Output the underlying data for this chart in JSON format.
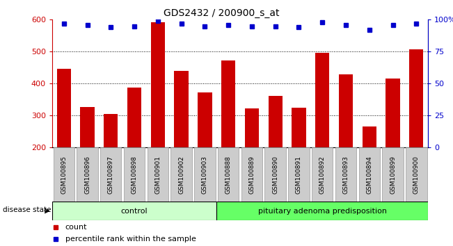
{
  "title": "GDS2432 / 200900_s_at",
  "samples": [
    "GSM100895",
    "GSM100896",
    "GSM100897",
    "GSM100898",
    "GSM100901",
    "GSM100902",
    "GSM100903",
    "GSM100888",
    "GSM100889",
    "GSM100890",
    "GSM100891",
    "GSM100892",
    "GSM100893",
    "GSM100894",
    "GSM100899",
    "GSM100900"
  ],
  "counts": [
    447,
    326,
    305,
    388,
    592,
    440,
    372,
    472,
    322,
    362,
    325,
    497,
    428,
    265,
    415,
    507
  ],
  "percentiles": [
    97,
    96,
    94,
    95,
    99,
    97,
    95,
    96,
    95,
    95,
    94,
    98,
    96,
    92,
    96,
    97
  ],
  "control_count": 7,
  "disease_label": "pituitary adenoma predisposition",
  "control_label": "control",
  "disease_state_label": "disease state",
  "bar_color": "#cc0000",
  "dot_color": "#0000cc",
  "ylim_left": [
    200,
    600
  ],
  "ylim_right": [
    0,
    100
  ],
  "yticks_left": [
    200,
    300,
    400,
    500,
    600
  ],
  "yticks_right": [
    0,
    25,
    50,
    75,
    100
  ],
  "right_tick_labels": [
    "0",
    "25",
    "50",
    "75",
    "100%"
  ],
  "legend_count_label": "count",
  "legend_percentile_label": "percentile rank within the sample",
  "bar_color_hex": "#cc0000",
  "dot_color_hex": "#0000cc",
  "control_bg": "#ccffcc",
  "disease_bg": "#66ff66",
  "xticklabel_bg": "#cccccc",
  "tick_label_color_left": "#cc0000",
  "tick_label_color_right": "#0000cc"
}
